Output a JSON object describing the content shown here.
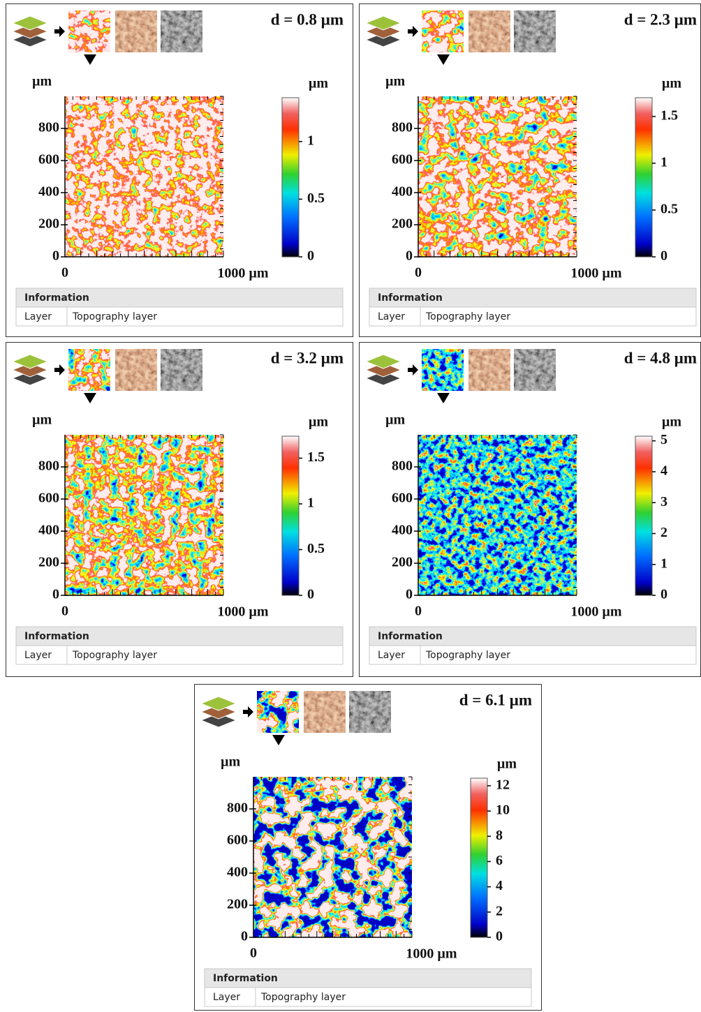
{
  "panels": [
    {
      "title": "d = 0.8 µm",
      "y_unit": "µm",
      "ylim": [
        0,
        1000
      ],
      "yticks": [
        0,
        200,
        400,
        600,
        800
      ],
      "x_start": "0",
      "x_end": "1000 µm",
      "colorbar_unit": "µm",
      "colorbar_lim": [
        0,
        1.38
      ],
      "colorbar_ticks": [
        0,
        0.5,
        1
      ],
      "info": {
        "header": "Information",
        "label": "Layer",
        "value": "Topography layer"
      }
    },
    {
      "title": "d = 2.3 µm",
      "y_unit": "µm",
      "ylim": [
        0,
        1000
      ],
      "yticks": [
        0,
        200,
        400,
        600,
        800
      ],
      "x_start": "0",
      "x_end": "1000 µm",
      "colorbar_unit": "µm",
      "colorbar_lim": [
        0,
        1.7
      ],
      "colorbar_ticks": [
        0,
        0.5,
        1,
        1.5
      ],
      "info": {
        "header": "Information",
        "label": "Layer",
        "value": "Topography layer"
      }
    },
    {
      "title": "d = 3.2 µm",
      "y_unit": "µm",
      "ylim": [
        0,
        1000
      ],
      "yticks": [
        0,
        200,
        400,
        600,
        800
      ],
      "x_start": "0",
      "x_end": "1000 µm",
      "colorbar_unit": "µm",
      "colorbar_lim": [
        0,
        1.74
      ],
      "colorbar_ticks": [
        0,
        0.5,
        1,
        1.5
      ],
      "info": {
        "header": "Information",
        "label": "Layer",
        "value": "Topography layer"
      }
    },
    {
      "title": "d = 4.8 µm",
      "y_unit": "µm",
      "ylim": [
        0,
        1000
      ],
      "yticks": [
        0,
        200,
        400,
        600,
        800
      ],
      "x_start": "0",
      "x_end": "1000 µm",
      "colorbar_unit": "µm",
      "colorbar_lim": [
        0,
        5.15
      ],
      "colorbar_ticks": [
        0,
        1,
        2,
        3,
        4,
        5
      ],
      "info": {
        "header": "Information",
        "label": "Layer",
        "value": "Topography layer"
      }
    },
    {
      "title": "d = 6.1 µm",
      "y_unit": "µm",
      "ylim": [
        0,
        1000
      ],
      "yticks": [
        0,
        200,
        400,
        600,
        800
      ],
      "x_start": "0",
      "x_end": "1000 µm",
      "colorbar_unit": "µm",
      "colorbar_lim": [
        0,
        12.6
      ],
      "colorbar_ticks": [
        0,
        2,
        4,
        6,
        8,
        10,
        12
      ],
      "info": {
        "header": "Information",
        "label": "Layer",
        "value": "Topography layer"
      }
    }
  ]
}
